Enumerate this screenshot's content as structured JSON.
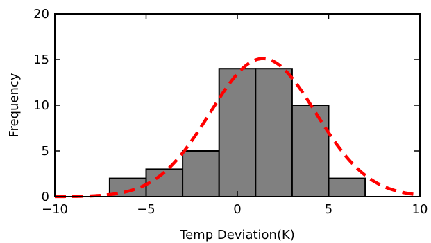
{
  "chart_data": {
    "type": "bar",
    "title": "",
    "xlabel": "Temp Deviation(K)",
    "ylabel": "Frequency",
    "xlim": [
      -10,
      10
    ],
    "ylim": [
      0,
      20
    ],
    "xticks": [
      {
        "value": -10,
        "label": "−10"
      },
      {
        "value": -5,
        "label": "−5"
      },
      {
        "value": 0,
        "label": "0"
      },
      {
        "value": 5,
        "label": "5"
      },
      {
        "value": 10,
        "label": "10"
      }
    ],
    "yticks": [
      {
        "value": 0,
        "label": "0"
      },
      {
        "value": 5,
        "label": "5"
      },
      {
        "value": 10,
        "label": "10"
      },
      {
        "value": 15,
        "label": "15"
      },
      {
        "value": 20,
        "label": "20"
      }
    ],
    "bins": [
      {
        "x0": -7.0,
        "x1": -5.0,
        "count": 2
      },
      {
        "x0": -5.0,
        "x1": -3.0,
        "count": 3
      },
      {
        "x0": -3.0,
        "x1": -1.0,
        "count": 5
      },
      {
        "x0": -1.0,
        "x1": 1.0,
        "count": 14
      },
      {
        "x0": 1.0,
        "x1": 3.0,
        "count": 14
      },
      {
        "x0": 3.0,
        "x1": 5.0,
        "count": 10
      },
      {
        "x0": 5.0,
        "x1": 7.0,
        "count": 2
      }
    ],
    "fit_curve": {
      "type": "gaussian",
      "mean": 1.4,
      "std": 2.9,
      "peak": 15.1,
      "color": "#ff0000",
      "style": "dashed"
    },
    "bar_color": "#808080",
    "bar_edge_color": "#000000",
    "grid": false,
    "legend": "none"
  }
}
